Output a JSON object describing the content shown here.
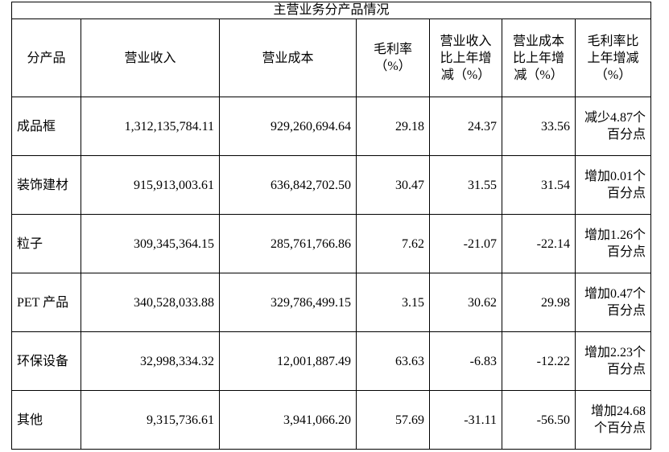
{
  "table": {
    "title": "主营业务分产品情况",
    "header": [
      "分产品",
      "营业收入",
      "营业成本",
      "毛利率（%）",
      "营业收入比上年增减（%）",
      "营业成本比上年增减（%）",
      "毛利率比上年增减（%）"
    ],
    "rows": [
      [
        "成品框",
        "1,312,135,784.11",
        "929,260,694.64",
        "29.18",
        "24.37",
        "33.56",
        "减少4.87个百分点"
      ],
      [
        "装饰建材",
        "915,913,003.61",
        "636,842,702.50",
        "30.47",
        "31.55",
        "31.54",
        "增加0.01个百分点"
      ],
      [
        "粒子",
        "309,345,364.15",
        "285,761,766.86",
        "7.62",
        "-21.07",
        "-22.14",
        "增加1.26个百分点"
      ],
      [
        "PET 产品",
        "340,528,033.88",
        "329,786,499.15",
        "3.15",
        "30.62",
        "29.98",
        "增加0.47个百分点"
      ],
      [
        "环保设备",
        "32,998,334.32",
        "12,001,887.49",
        "63.63",
        "-6.83",
        "-12.22",
        "增加2.23个百分点"
      ],
      [
        "其他",
        "9,315,736.61",
        "3,941,066.20",
        "57.69",
        "-31.11",
        "-56.50",
        "增加24.68个百分点"
      ]
    ]
  }
}
